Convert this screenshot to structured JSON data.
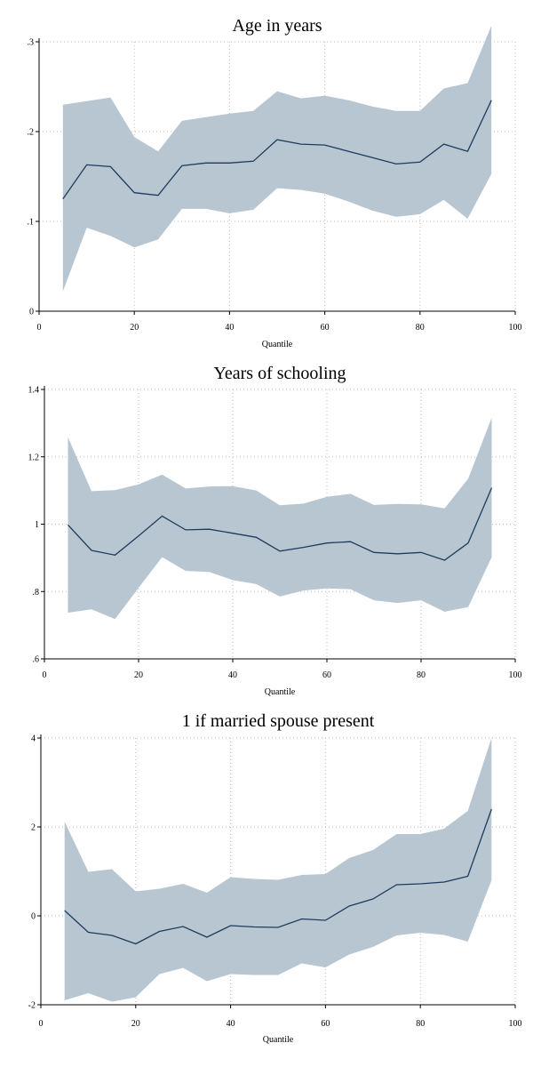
{
  "colors": {
    "band": "#b8c6d2",
    "line": "#1d3c5c"
  },
  "chart_data": [
    {
      "type": "area",
      "title": "Age in years",
      "xlabel": "Quantile",
      "ylabel": "",
      "xlim": [
        0,
        100
      ],
      "ylim": [
        0,
        0.3
      ],
      "grid": true,
      "x_ticks": [
        0,
        20,
        40,
        60,
        80,
        100
      ],
      "x_tick_labels": [
        "0",
        "20",
        "40",
        "60",
        "80",
        "100"
      ],
      "y_ticks": [
        0,
        0.1,
        0.2,
        0.3
      ],
      "y_tick_labels": [
        "0",
        ".1",
        ".2",
        ".3"
      ],
      "x": [
        5,
        10,
        15,
        20,
        25,
        30,
        35,
        40,
        45,
        50,
        55,
        60,
        65,
        70,
        75,
        80,
        85,
        90,
        95
      ],
      "series": [
        {
          "role": "estimate",
          "values": [
            0.125,
            0.163,
            0.161,
            0.132,
            0.129,
            0.162,
            0.165,
            0.165,
            0.167,
            0.191,
            0.186,
            0.185,
            0.178,
            0.171,
            0.164,
            0.166,
            0.186,
            0.178,
            0.235
          ]
        },
        {
          "role": "upper",
          "values": [
            0.23,
            0.234,
            0.238,
            0.194,
            0.178,
            0.212,
            0.216,
            0.22,
            0.223,
            0.245,
            0.237,
            0.24,
            0.235,
            0.228,
            0.223,
            0.223,
            0.248,
            0.254,
            0.318
          ]
        },
        {
          "role": "lower",
          "values": [
            0.022,
            0.093,
            0.084,
            0.071,
            0.08,
            0.114,
            0.114,
            0.109,
            0.113,
            0.137,
            0.135,
            0.131,
            0.122,
            0.112,
            0.105,
            0.108,
            0.124,
            0.103,
            0.153
          ]
        }
      ]
    },
    {
      "type": "area",
      "title": "Years of schooling",
      "xlabel": "Quantile",
      "ylabel": "",
      "xlim": [
        0,
        100
      ],
      "ylim": [
        0.6,
        1.4
      ],
      "grid": true,
      "x_ticks": [
        0,
        20,
        40,
        60,
        80,
        100
      ],
      "x_tick_labels": [
        "0",
        "20",
        "40",
        "60",
        "80",
        "100"
      ],
      "y_ticks": [
        0.6,
        0.8,
        1.0,
        1.2,
        1.4
      ],
      "y_tick_labels": [
        ".6",
        ".8",
        "1",
        "1.2",
        "1.4"
      ],
      "x": [
        5,
        10,
        15,
        20,
        25,
        30,
        35,
        40,
        45,
        50,
        55,
        60,
        65,
        70,
        75,
        80,
        85,
        90,
        95
      ],
      "series": [
        {
          "role": "estimate",
          "values": [
            0.998,
            0.922,
            0.908,
            0.965,
            1.024,
            0.983,
            0.985,
            0.973,
            0.961,
            0.92,
            0.931,
            0.944,
            0.948,
            0.916,
            0.912,
            0.916,
            0.893,
            0.944,
            1.108
          ]
        },
        {
          "role": "upper",
          "values": [
            1.258,
            1.098,
            1.101,
            1.118,
            1.147,
            1.106,
            1.112,
            1.113,
            1.1,
            1.056,
            1.061,
            1.081,
            1.09,
            1.057,
            1.06,
            1.059,
            1.047,
            1.135,
            1.316
          ]
        },
        {
          "role": "lower",
          "values": [
            0.737,
            0.747,
            0.718,
            0.811,
            0.902,
            0.861,
            0.858,
            0.834,
            0.822,
            0.785,
            0.803,
            0.809,
            0.807,
            0.774,
            0.766,
            0.774,
            0.74,
            0.754,
            0.902
          ]
        }
      ]
    },
    {
      "type": "area",
      "title": "1 if married spouse present",
      "xlabel": "Quantile",
      "ylabel": "",
      "xlim": [
        0,
        100
      ],
      "ylim": [
        -2,
        4
      ],
      "grid": true,
      "x_ticks": [
        0,
        20,
        40,
        60,
        80,
        100
      ],
      "x_tick_labels": [
        "0",
        "20",
        "40",
        "60",
        "80",
        "100"
      ],
      "y_ticks": [
        -2,
        0,
        2,
        4
      ],
      "y_tick_labels": [
        "-2",
        "0",
        "2",
        "4"
      ],
      "x": [
        5,
        10,
        15,
        20,
        25,
        30,
        35,
        40,
        45,
        50,
        55,
        60,
        65,
        70,
        75,
        80,
        85,
        90,
        95
      ],
      "series": [
        {
          "role": "estimate",
          "values": [
            0.12,
            -0.37,
            -0.44,
            -0.63,
            -0.35,
            -0.24,
            -0.48,
            -0.22,
            -0.25,
            -0.26,
            -0.07,
            -0.1,
            0.22,
            0.38,
            0.7,
            0.72,
            0.76,
            0.89,
            2.4
          ]
        },
        {
          "role": "upper",
          "values": [
            2.12,
            0.99,
            1.05,
            0.55,
            0.61,
            0.72,
            0.52,
            0.87,
            0.83,
            0.81,
            0.92,
            0.94,
            1.3,
            1.48,
            1.84,
            1.84,
            1.96,
            2.36,
            4.0
          ]
        },
        {
          "role": "lower",
          "values": [
            -1.9,
            -1.74,
            -1.93,
            -1.83,
            -1.31,
            -1.17,
            -1.47,
            -1.31,
            -1.33,
            -1.33,
            -1.07,
            -1.16,
            -0.87,
            -0.7,
            -0.44,
            -0.38,
            -0.43,
            -0.58,
            0.8
          ]
        }
      ]
    }
  ]
}
